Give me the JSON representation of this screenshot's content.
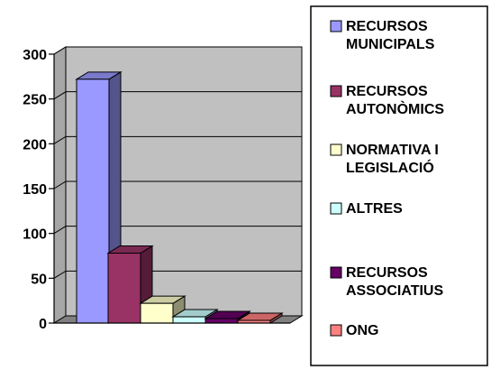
{
  "chart_data": {
    "type": "bar",
    "categories": [
      "RECURSOS MUNICIPALS",
      "RECURSOS AUTONÒMICS",
      "NORMATIVA I LEGISLACIÓ",
      "ALTRES",
      "RECURSOS ASSOCIATIUS",
      "ONG"
    ],
    "values": [
      272,
      78,
      22,
      7,
      5,
      3
    ],
    "ylim": [
      0,
      300
    ],
    "yticks": [
      "0",
      "50",
      "100",
      "150",
      "200",
      "250",
      "300"
    ],
    "grid": true,
    "legend_position": "right",
    "three_d": true,
    "plot_background": "#c0c0c0",
    "legend": [
      {
        "lines": [
          "RECURSOS",
          "MUNICIPALS"
        ],
        "color": "#9999ff"
      },
      {
        "lines": [
          "RECURSOS",
          "AUTONÒMICS"
        ],
        "color": "#993366"
      },
      {
        "lines": [
          "NORMATIVA I",
          "LEGISLACIÓ"
        ],
        "color": "#ffffcc"
      },
      {
        "lines": [
          "ALTRES"
        ],
        "color": "#ccffff"
      },
      {
        "lines": [
          "RECURSOS",
          "ASSOCIATIUS"
        ],
        "color": "#660066"
      },
      {
        "lines": [
          "ONG"
        ],
        "color": "#ff8080"
      }
    ]
  }
}
